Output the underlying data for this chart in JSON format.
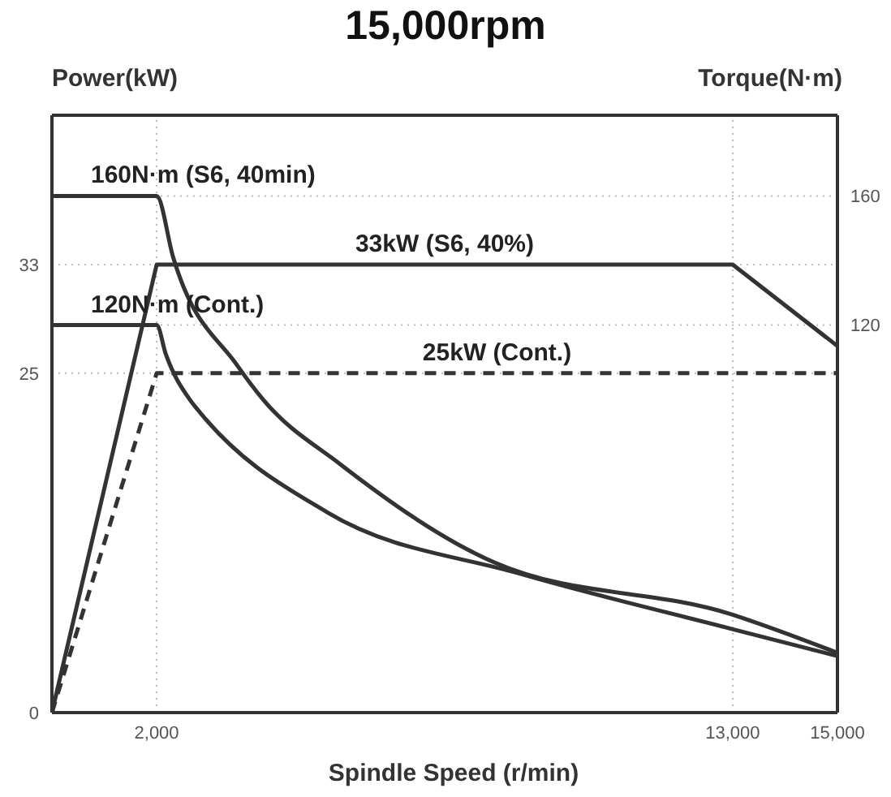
{
  "chart_data": {
    "type": "line",
    "title": "15,000rpm",
    "xlabel": "Spindle Speed (r/min)",
    "ylabel": "Power(kW)",
    "y2label": "Torque(N·m)",
    "xlim": [
      0,
      15000
    ],
    "xticks": [
      {
        "value": 2000,
        "label": "2,000"
      },
      {
        "value": 13000,
        "label": "13,000"
      },
      {
        "value": 15000,
        "label": "15,000"
      }
    ],
    "ylim": [
      0,
      44
    ],
    "yticks": [
      0,
      25,
      33
    ],
    "y2lim": [
      0,
      185
    ],
    "y2ticks": [
      120,
      160
    ],
    "grid": true,
    "marker": "none",
    "series": [
      {
        "name": "160N·m (S6, 40min)",
        "color": "#333333",
        "axis": "y2",
        "line_style": "solid",
        "x": [
          0,
          2000,
          2315,
          3540,
          4030,
          5500,
          8450,
          12960,
          15000
        ],
        "values": [
          160,
          160,
          141,
          107.5,
          97,
          77,
          46.5,
          30.5,
          18.5
        ]
      },
      {
        "name": "33kW (S6, 40%)",
        "color": "#333333",
        "line_style": "solid",
        "x": [
          0,
          2000,
          13000,
          15000
        ],
        "values": [
          0,
          33,
          33,
          27
        ]
      },
      {
        "name": "120N·m (Cont.)",
        "color": "#333333",
        "axis": "y2",
        "line_style": "solid",
        "x": [
          0,
          2000,
          2175,
          2630,
          2800,
          5260,
          8940,
          12960,
          15000
        ],
        "values": [
          120,
          120,
          111,
          97,
          93.5,
          62,
          43,
          26,
          17.5
        ]
      },
      {
        "name": "25kW (Cont.)",
        "color": "#333333",
        "line_style": "dashed",
        "x": [
          0,
          2000,
          15000
        ],
        "values": [
          0,
          25,
          25
        ]
      }
    ]
  }
}
